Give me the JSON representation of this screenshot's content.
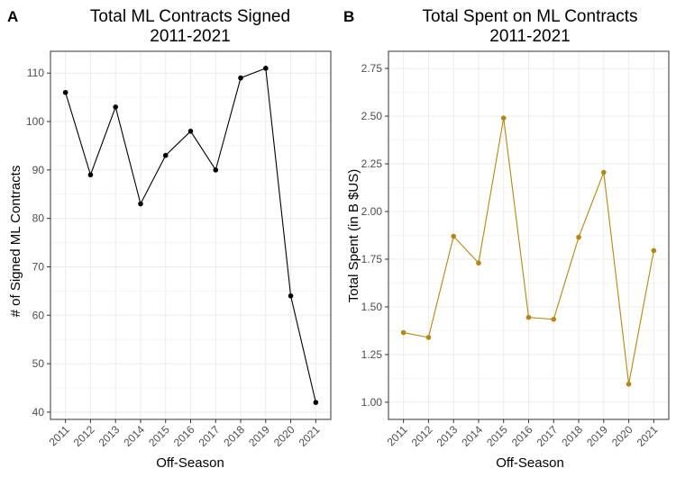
{
  "colors": {
    "panel_a_line": "#000000",
    "panel_b_line": "#b8860b",
    "grid": "#ebebeb",
    "border": "#333333"
  },
  "chart_data": [
    {
      "tag": "A",
      "type": "line",
      "title_lines": [
        "Total ML Contracts Signed",
        "2011-2021"
      ],
      "xlabel": "Off-Season",
      "ylabel": "# of Signed ML Contracts",
      "x": [
        "2011",
        "2012",
        "2013",
        "2014",
        "2015",
        "2016",
        "2017",
        "2018",
        "2019",
        "2020",
        "2021"
      ],
      "y": [
        106,
        89,
        103,
        83,
        93,
        98,
        90,
        109,
        111,
        64,
        42
      ],
      "ylim": [
        38.5,
        114.5
      ],
      "yticks": [
        40,
        50,
        60,
        70,
        80,
        90,
        100,
        110
      ],
      "ytick_labels": [
        "40",
        "50",
        "60",
        "70",
        "80",
        "90",
        "100",
        "110"
      ],
      "grid": true,
      "color": "#000000"
    },
    {
      "tag": "B",
      "type": "line",
      "title_lines": [
        "Total Spent on ML Contracts",
        "2011-2021"
      ],
      "xlabel": "Off-Season",
      "ylabel": "Total Spent (in B $US)",
      "x": [
        "2011",
        "2012",
        "2013",
        "2014",
        "2015",
        "2016",
        "2017",
        "2018",
        "2019",
        "2020",
        "2021"
      ],
      "y": [
        1.365,
        1.34,
        1.87,
        1.73,
        2.49,
        1.445,
        1.435,
        1.865,
        2.205,
        1.095,
        1.795
      ],
      "ylim": [
        0.91,
        2.84
      ],
      "yticks": [
        1.0,
        1.25,
        1.5,
        1.75,
        2.0,
        2.25,
        2.5,
        2.75
      ],
      "ytick_labels": [
        "1.00",
        "1.25",
        "1.50",
        "1.75",
        "2.00",
        "2.25",
        "2.50",
        "2.75"
      ],
      "grid": true,
      "color": "#b8860b"
    }
  ]
}
